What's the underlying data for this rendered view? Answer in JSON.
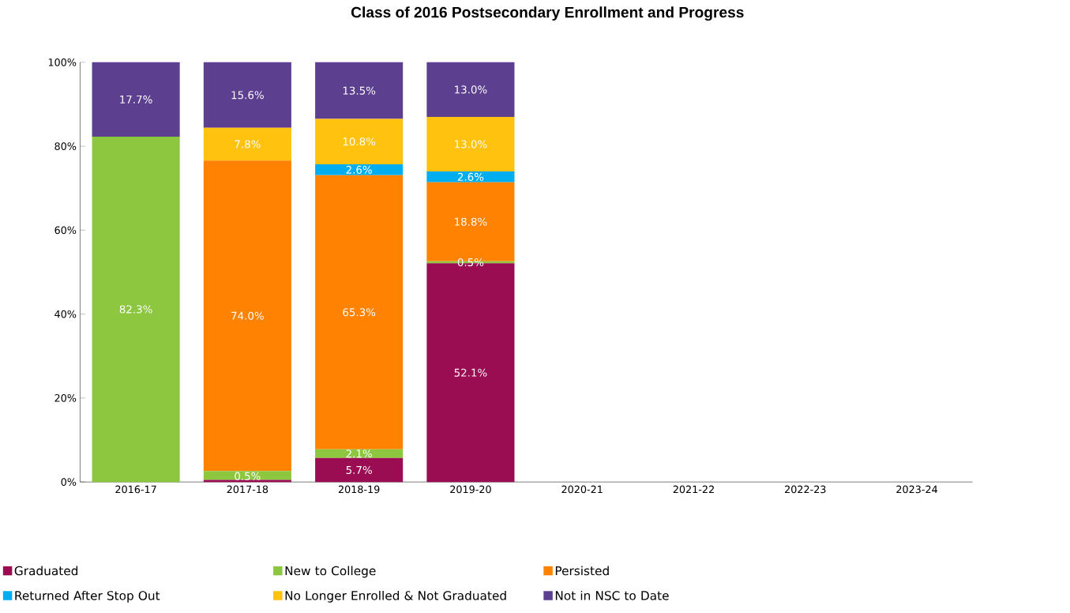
{
  "chart_data": {
    "type": "bar",
    "title": "Class of 2016  Postsecondary Enrollment and Progress",
    "categories": [
      "2016-17",
      "2017-18",
      "2018-19",
      "2019-20",
      "2020-21",
      "2021-22",
      "2022-23",
      "2023-24"
    ],
    "stacked": true,
    "legend": "bottom",
    "grid": false,
    "ylim": [
      0,
      100
    ],
    "yticks": [
      {
        "value": 0,
        "label": "0%"
      },
      {
        "value": 20,
        "label": "20%"
      },
      {
        "value": 40,
        "label": "40%"
      },
      {
        "value": 60,
        "label": "60%"
      },
      {
        "value": 80,
        "label": "80%"
      },
      {
        "value": 100,
        "label": "100%"
      }
    ],
    "series": [
      {
        "name": "Graduated",
        "color": "#9b0d52",
        "values": [
          null,
          0.5,
          5.7,
          52.1,
          null,
          null,
          null,
          null
        ],
        "value_labels": [
          null,
          "0.5%",
          "5.7%",
          "52.1%",
          null,
          null,
          null,
          null
        ]
      },
      {
        "name": "New to College",
        "color": "#8dc63f",
        "values": [
          82.3,
          2.1,
          2.1,
          0.5,
          null,
          null,
          null,
          null
        ],
        "value_labels": [
          "82.3%",
          null,
          "2.1%",
          "0.5%",
          null,
          null,
          null,
          null
        ]
      },
      {
        "name": "Persisted",
        "color": "#ff8300",
        "values": [
          null,
          74.0,
          65.3,
          18.8,
          null,
          null,
          null,
          null
        ],
        "value_labels": [
          null,
          "74.0%",
          "65.3%",
          "18.8%",
          null,
          null,
          null,
          null
        ]
      },
      {
        "name": "Returned After Stop Out",
        "color": "#00aeef",
        "values": [
          null,
          null,
          2.6,
          2.6,
          null,
          null,
          null,
          null
        ],
        "value_labels": [
          null,
          null,
          "2.6%",
          "2.6%",
          null,
          null,
          null,
          null
        ]
      },
      {
        "name": "No Longer Enrolled & Not Graduated",
        "color": "#ffc20e",
        "values": [
          null,
          7.8,
          10.8,
          13.0,
          null,
          null,
          null,
          null
        ],
        "value_labels": [
          null,
          "7.8%",
          "10.8%",
          "13.0%",
          null,
          null,
          null,
          null
        ]
      },
      {
        "name": "Not in NSC to Date",
        "color": "#5c3f8f",
        "values": [
          17.7,
          15.6,
          13.5,
          13.0,
          null,
          null,
          null,
          null
        ],
        "value_labels": [
          "17.7%",
          "15.6%",
          "13.5%",
          "13.0%",
          null,
          null,
          null,
          null
        ]
      }
    ]
  }
}
